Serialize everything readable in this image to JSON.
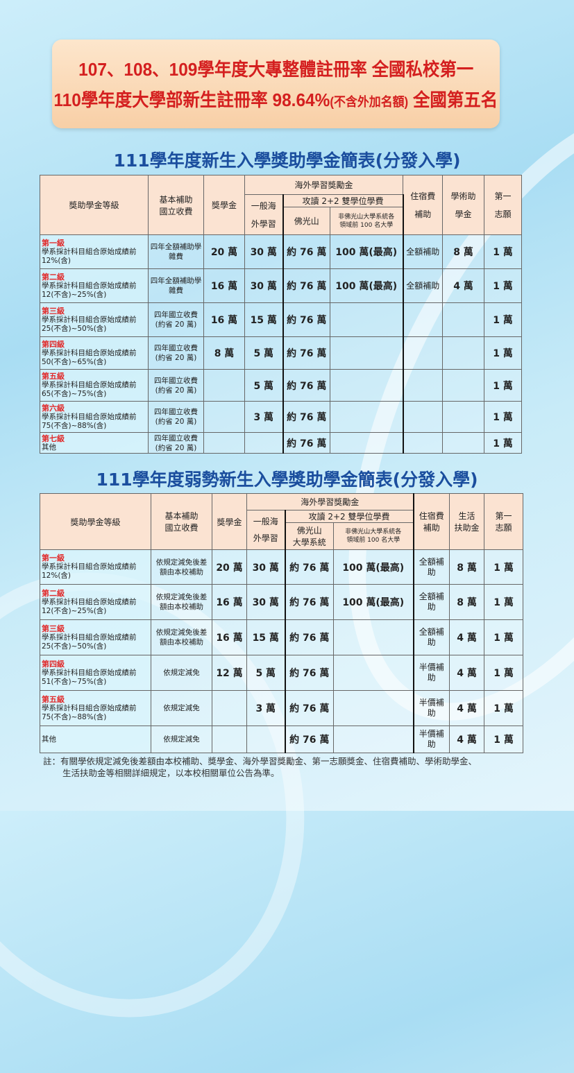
{
  "banner": {
    "line1": "107、108、109學年度大專整體註冊率  全國私校第一",
    "line2_a": "110學年度大學部新生註冊率 98.64%",
    "line2_small": "(不含外加名額)",
    "line2_b": " 全國第五名"
  },
  "table1": {
    "title": "111學年度新生入學獎助學金簡表(分發入學)",
    "headers": {
      "grade": "獎助學金等級",
      "basic": "基本補助\n國立收費",
      "scholarship": "獎學金",
      "overseas": "海外學習獎勵金",
      "general": "一般海\n外學習",
      "dual": "攻讀 2+2 雙學位學費",
      "fgs": "佛光山",
      "nonfgs": "非佛光山大學系統各\n領域前 100 名大學",
      "dorm": "住宿費\n補助",
      "academic": "學術助\n學金",
      "first": "第一\n志願"
    },
    "rows": [
      {
        "level": "第一級",
        "criteria": "學系採計科目組合原始成績前 12%(含)",
        "basic": "四年全額補助學雜費",
        "scholarship": "20 萬",
        "general": "30 萬",
        "fgs": "約 76 萬",
        "nonfgs": "100 萬(最高)",
        "dorm": "全額補助",
        "academic": "8 萬",
        "first": "1 萬"
      },
      {
        "level": "第二級",
        "criteria": "學系採計科目組合原始成績前 12(不含)~25%(含)",
        "basic": "四年全額補助學雜費",
        "scholarship": "16 萬",
        "general": "30 萬",
        "fgs": "約 76 萬",
        "nonfgs": "100 萬(最高)",
        "dorm": "全額補助",
        "academic": "4 萬",
        "first": "1 萬"
      },
      {
        "level": "第三級",
        "criteria": "學系採計科目組合原始成績前 25(不含)~50%(含)",
        "basic": "四年國立收費(約省 20 萬)",
        "scholarship": "16 萬",
        "general": "15 萬",
        "fgs": "約 76 萬",
        "nonfgs": "",
        "dorm": "",
        "academic": "",
        "first": "1 萬"
      },
      {
        "level": "第四級",
        "criteria": "學系採計科目組合原始成績前 50(不含)~65%(含)",
        "basic": "四年國立收費(約省 20 萬)",
        "scholarship": "8 萬",
        "general": "5 萬",
        "fgs": "約 76 萬",
        "nonfgs": "",
        "dorm": "",
        "academic": "",
        "first": "1 萬"
      },
      {
        "level": "第五級",
        "criteria": "學系採計科目組合原始成績前 65(不含)~75%(含)",
        "basic": "四年國立收費(約省 20 萬)",
        "scholarship": "",
        "general": "5 萬",
        "fgs": "約 76 萬",
        "nonfgs": "",
        "dorm": "",
        "academic": "",
        "first": "1 萬"
      },
      {
        "level": "第六級",
        "criteria": "學系採計科目組合原始成績前 75(不含)~88%(含)",
        "basic": "四年國立收費(約省 20 萬)",
        "scholarship": "",
        "general": "3 萬",
        "fgs": "約 76 萬",
        "nonfgs": "",
        "dorm": "",
        "academic": "",
        "first": "1 萬"
      },
      {
        "level": "第七級",
        "criteria": "其他",
        "basic": "四年國立收費(約省 20 萬)",
        "scholarship": "",
        "general": "",
        "fgs": "約 76 萬",
        "nonfgs": "",
        "dorm": "",
        "academic": "",
        "first": "1 萬"
      }
    ]
  },
  "table2": {
    "title": "111學年度弱勢新生入學獎助學金簡表(分發入學)",
    "headers": {
      "grade": "獎助學金等級",
      "basic": "基本補助\n國立收費",
      "scholarship": "獎學金",
      "overseas": "海外學習獎勵金",
      "general": "一般海\n外學習",
      "dual": "攻讀 2+2 雙學位學費",
      "fgs": "佛光山\n大學系統",
      "nonfgs": "非佛光山大學系統各\n領域前 100 名大學",
      "dorm": "住宿費\n補助",
      "living": "生活\n扶助金",
      "first": "第一\n志願"
    },
    "rows": [
      {
        "level": "第一級",
        "criteria": "學系採計科目組合原始成績前 12%(含)",
        "basic": "依規定減免後差額由本校補助",
        "scholarship": "20 萬",
        "general": "30 萬",
        "fgs": "約 76 萬",
        "nonfgs": "100 萬(最高)",
        "dorm": "全額補助",
        "living": "8 萬",
        "first": "1 萬"
      },
      {
        "level": "第二級",
        "criteria": "學系採計科目組合原始成績前 12(不含)~25%(含)",
        "basic": "依規定減免後差額由本校補助",
        "scholarship": "16 萬",
        "general": "30 萬",
        "fgs": "約 76 萬",
        "nonfgs": "100 萬(最高)",
        "dorm": "全額補助",
        "living": "8 萬",
        "first": "1 萬"
      },
      {
        "level": "第三級",
        "criteria": "學系採計科目組合原始成績前 25(不含)~50%(含)",
        "basic": "依規定減免後差額由本校補助",
        "scholarship": "16 萬",
        "general": "15 萬",
        "fgs": "約 76 萬",
        "nonfgs": "",
        "dorm": "全額補助",
        "living": "4 萬",
        "first": "1 萬"
      },
      {
        "level": "第四級",
        "criteria": "學系採計科目組合原始成績前 51(不含)~75%(含)",
        "basic": "依規定減免",
        "scholarship": "12 萬",
        "general": "5 萬",
        "fgs": "約 76 萬",
        "nonfgs": "",
        "dorm": "半價補助",
        "living": "4 萬",
        "first": "1 萬"
      },
      {
        "level": "第五級",
        "criteria": "學系採計科目組合原始成績前 75(不含)~88%(含)",
        "basic": "依規定減免",
        "scholarship": "",
        "general": "3 萬",
        "fgs": "約 76 萬",
        "nonfgs": "",
        "dorm": "半價補助",
        "living": "4 萬",
        "first": "1 萬"
      },
      {
        "level": "",
        "criteria": "其他",
        "basic": "依規定減免",
        "scholarship": "",
        "general": "",
        "fgs": "約 76 萬",
        "nonfgs": "",
        "dorm": "半價補助",
        "living": "4 萬",
        "first": "1 萬"
      }
    ]
  },
  "note": {
    "line1": "註：有關學依規定減免後差額由本校補助、獎學金、海外學習獎勵金、第一志願獎金、住宿費補助、學術助學金、",
    "line2": "生活扶助金等相關詳細規定，以本校相關單位公告為準。"
  }
}
